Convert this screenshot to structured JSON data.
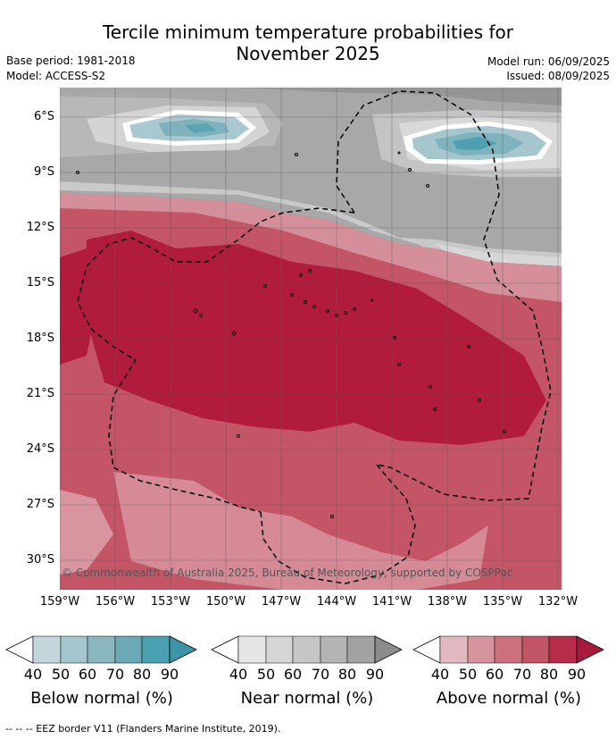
{
  "title_line1": "Tercile minimum temperature probabilities for",
  "title_line2": "November 2025",
  "base_period": "Base period: 1981-2018",
  "model": "Model: ACCESS-S2",
  "model_run": "Model run: 06/09/2025",
  "issued": "Issued: 08/09/2025",
  "copyright": "© Commonwealth of Australia 2025, Bureau of Meteorology, supported by COSPPac",
  "footer": "--  --  -- EEZ border V11 (Flanders Marine Institute, 2019).",
  "lat_labels": [
    "6°S",
    "9°S",
    "12°S",
    "15°S",
    "18°S",
    "21°S",
    "24°S",
    "27°S",
    "30°S"
  ],
  "lon_labels": [
    "159°W",
    "156°W",
    "153°W",
    "150°W",
    "147°W",
    "144°W",
    "141°W",
    "138°W",
    "135°W",
    "132°W"
  ],
  "colorbars": [
    {
      "label": "Below normal (%)",
      "ticks": [
        "40",
        "50",
        "60",
        "70",
        "80",
        "90"
      ],
      "colors": [
        "#c3d6dc",
        "#a6c6cd",
        "#8ab6c0",
        "#6ba9b5",
        "#4a9fb0"
      ]
    },
    {
      "label": "Near normal (%)",
      "ticks": [
        "40",
        "50",
        "60",
        "70",
        "80",
        "90"
      ],
      "colors": [
        "#e6e6e6",
        "#d6d6d6",
        "#c6c6c6",
        "#b4b4b4",
        "#a2a2a2"
      ]
    },
    {
      "label": "Above normal (%)",
      "ticks": [
        "40",
        "50",
        "60",
        "70",
        "80",
        "90"
      ],
      "colors": [
        "#e2b9c0",
        "#d6959e",
        "#cc707e",
        "#c15566",
        "#b72c49"
      ]
    }
  ],
  "colors": {
    "near_dark": "#a2a2a2",
    "near_mid": "#c6c6c6",
    "above_strong": "#b21c3c",
    "above_mid": "#c04a5e",
    "above_light": "#d98e99",
    "below_strong": "#4a9fb0"
  }
}
